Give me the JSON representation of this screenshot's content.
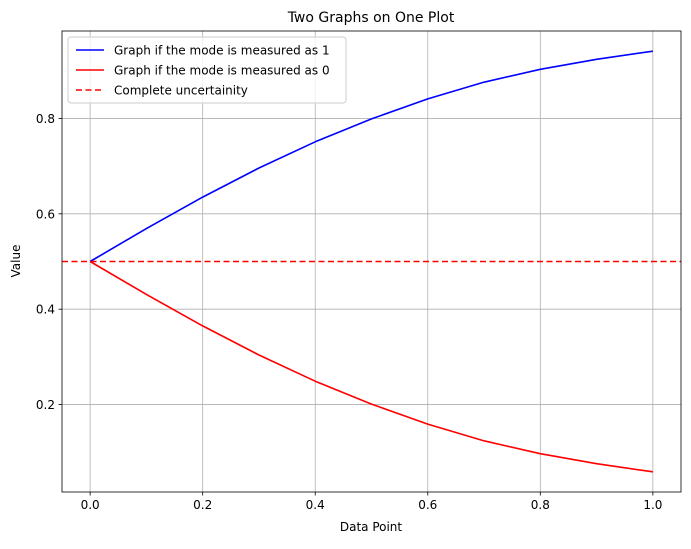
{
  "chart_data": {
    "type": "line",
    "title": "Two Graphs on One Plot",
    "xlabel": "Data Point",
    "ylabel": "Value",
    "xlim": [
      -0.05,
      1.05
    ],
    "ylim": [
      0.0167,
      0.9833
    ],
    "grid": true,
    "legend_position": "upper left",
    "x_ticks": [
      0.0,
      0.2,
      0.4,
      0.6,
      0.8,
      1.0
    ],
    "x_tick_labels": [
      "0.0",
      "0.2",
      "0.4",
      "0.6",
      "0.8",
      "1.0"
    ],
    "y_ticks": [
      0.2,
      0.4,
      0.6,
      0.8
    ],
    "y_tick_labels": [
      "0.2",
      "0.4",
      "0.6",
      "0.8"
    ],
    "x": [
      0.0,
      0.1,
      0.2,
      0.3,
      0.4,
      0.5,
      0.6,
      0.7,
      0.8,
      0.9,
      1.0
    ],
    "series": [
      {
        "name": "Graph if the mode is measured as 1",
        "color": "#0000ff",
        "style": "solid",
        "values": [
          0.5,
          0.569,
          0.635,
          0.696,
          0.751,
          0.799,
          0.841,
          0.876,
          0.903,
          0.924,
          0.941
        ]
      },
      {
        "name": "Graph if the mode is measured as 0",
        "color": "#ff0000",
        "style": "solid",
        "values": [
          0.5,
          0.431,
          0.365,
          0.304,
          0.249,
          0.201,
          0.159,
          0.124,
          0.097,
          0.076,
          0.059
        ]
      },
      {
        "name": "Complete uncertainity",
        "color": "#ff0000",
        "style": "dashed",
        "type": "hline",
        "value": 0.5
      }
    ]
  }
}
